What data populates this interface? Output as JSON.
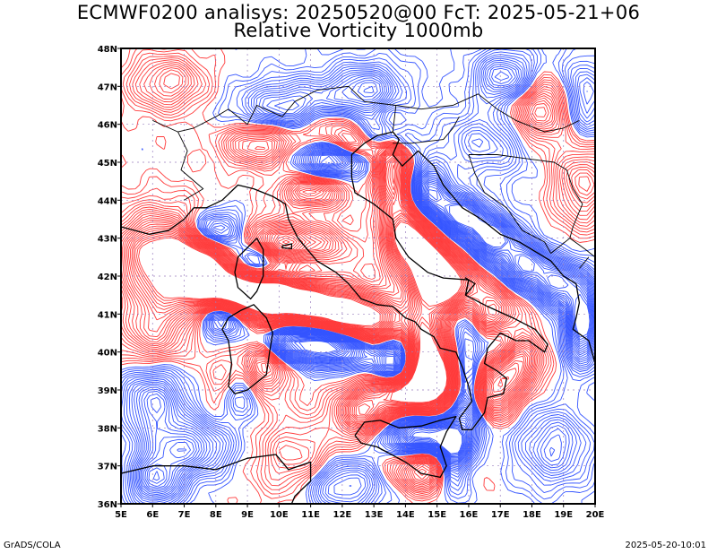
{
  "title": "ECMWF0200 analisys: 20250520@00 FcT: 2025-05-21+06",
  "subtitle": "Relative Vorticity 1000mb",
  "footer_left": "GrADS/COLA",
  "footer_right": "2025-05-20-10:01",
  "map": {
    "lon_range": [
      5,
      20
    ],
    "lat_range": [
      36,
      48
    ],
    "lon_ticks": [
      "5E",
      "6E",
      "7E",
      "8E",
      "9E",
      "10E",
      "11E",
      "12E",
      "13E",
      "14E",
      "15E",
      "16E",
      "17E",
      "18E",
      "19E",
      "20E"
    ],
    "lat_ticks": [
      "36N",
      "37N",
      "38N",
      "39N",
      "40N",
      "41N",
      "42N",
      "43N",
      "44N",
      "45N",
      "46N",
      "47N",
      "48N"
    ],
    "colors": {
      "positive_contour": "#ff3b3b",
      "negative_contour": "#3454ff",
      "coastline": "#000000",
      "grid": "#9a7fbf"
    }
  }
}
